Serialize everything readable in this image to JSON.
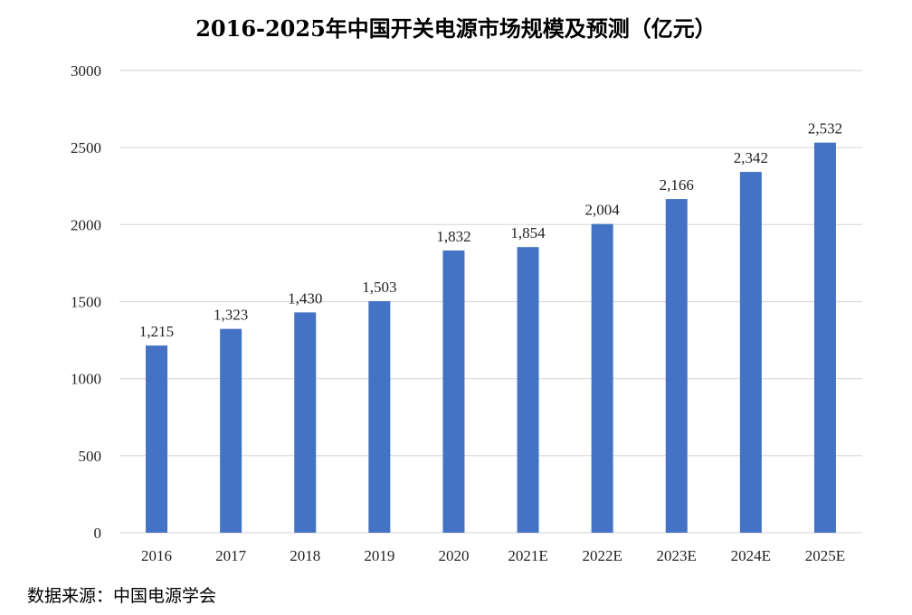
{
  "chart_data": {
    "type": "bar",
    "title": "2016-2025年中国开关电源市场规模及预测（亿元）",
    "categories": [
      "2016",
      "2017",
      "2018",
      "2019",
      "2020",
      "2021E",
      "2022E",
      "2023E",
      "2024E",
      "2025E"
    ],
    "values": [
      1215,
      1323,
      1430,
      1503,
      1832,
      1854,
      2004,
      2166,
      2342,
      2532
    ],
    "data_labels": [
      "1,215",
      "1,323",
      "1,430",
      "1,503",
      "1,832",
      "1,854",
      "2,004",
      "2,166",
      "2,342",
      "2,532"
    ],
    "ylim": [
      0,
      3000
    ],
    "yticks": [
      0,
      500,
      1000,
      1500,
      2000,
      2500,
      3000
    ],
    "xlabel": "",
    "ylabel": "",
    "grid": true,
    "legend": "none",
    "bar_color": "#4472C4",
    "grid_color": "#D9D9D9"
  },
  "source_note": "数据来源：中国电源学会"
}
